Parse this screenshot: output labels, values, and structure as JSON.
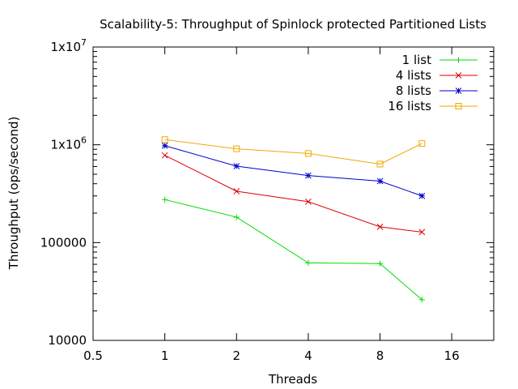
{
  "chart_data": {
    "type": "line",
    "title": "Scalability-5: Throughput of Spinlock protected Partitioned Lists",
    "xlabel": "Threads",
    "ylabel": "Throughput (ops/second)",
    "xscale": "log2",
    "yscale": "log10",
    "xlim": [
      0.5,
      24
    ],
    "ylim": [
      10000,
      10000000
    ],
    "xticks": [
      {
        "value": 0.5,
        "label": "0.5"
      },
      {
        "value": 1,
        "label": "1"
      },
      {
        "value": 2,
        "label": "2"
      },
      {
        "value": 4,
        "label": "4"
      },
      {
        "value": 8,
        "label": "8"
      },
      {
        "value": 16,
        "label": "16"
      }
    ],
    "yticks": [
      {
        "value": 10000,
        "label": "10000",
        "sup": ""
      },
      {
        "value": 100000,
        "label": "100000",
        "sup": ""
      },
      {
        "value": 1000000,
        "label": "1x10",
        "sup": "6"
      },
      {
        "value": 10000000,
        "label": "1x10",
        "sup": "7"
      }
    ],
    "legend_position": "top-right",
    "series": [
      {
        "name": "1 list",
        "color": "#00dd00",
        "marker": "plus",
        "x": [
          1,
          2,
          4,
          8,
          12
        ],
        "y": [
          275000,
          182000,
          62000,
          61000,
          26000
        ]
      },
      {
        "name": "4 lists",
        "color": "#dd0000",
        "marker": "cross",
        "x": [
          1,
          2,
          4,
          8,
          12
        ],
        "y": [
          780000,
          335000,
          262000,
          145000,
          128000
        ]
      },
      {
        "name": "8 lists",
        "color": "#0000cc",
        "marker": "star",
        "x": [
          1,
          2,
          4,
          8,
          12
        ],
        "y": [
          980000,
          605000,
          485000,
          425000,
          300000
        ]
      },
      {
        "name": "16 lists",
        "color": "#f0a800",
        "marker": "square",
        "x": [
          1,
          2,
          4,
          8,
          12
        ],
        "y": [
          1130000,
          910000,
          815000,
          635000,
          1030000
        ]
      }
    ]
  }
}
